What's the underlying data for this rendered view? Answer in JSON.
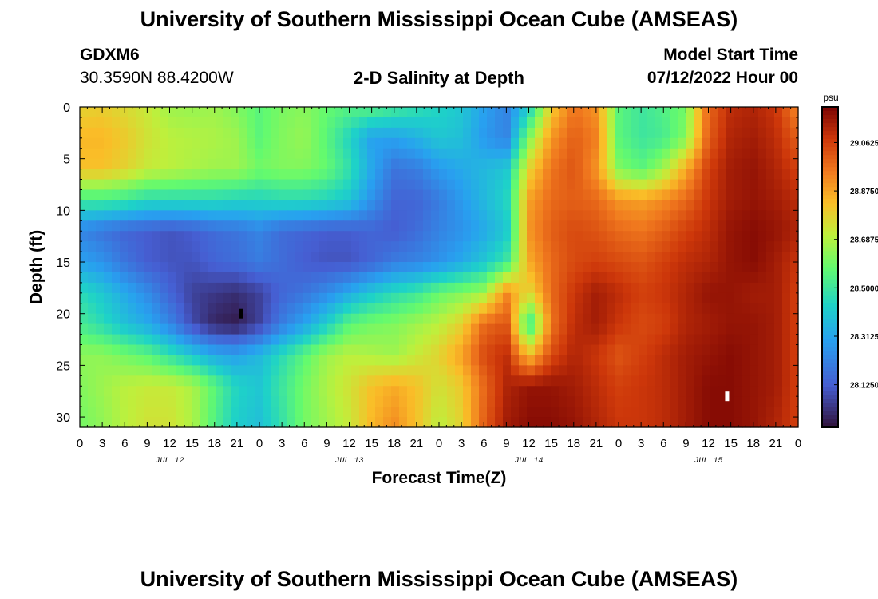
{
  "header": {
    "title": "University of Southern Mississippi Ocean Cube (AMSEAS)",
    "station": "GDXM6",
    "coords": "30.3590N  88.4200W",
    "plot_title": "2-D Salinity at Depth",
    "model_label": "Model Start Time",
    "model_time": "07/12/2022 Hour 00"
  },
  "footer": {
    "title": "University of Southern Mississippi Ocean Cube (AMSEAS)"
  },
  "chart_data": {
    "type": "heatmap",
    "title": "2-D Salinity at Depth",
    "xlabel": "Forecast Time(Z)",
    "ylabel": "Depth (ft)",
    "x_tick_labels": [
      "0",
      "3",
      "6",
      "9",
      "12",
      "15",
      "18",
      "21",
      "0",
      "3",
      "6",
      "9",
      "12",
      "15",
      "18",
      "21",
      "0",
      "3",
      "6",
      "9",
      "12",
      "15",
      "18",
      "21",
      "0",
      "3",
      "6",
      "9",
      "12",
      "15",
      "18",
      "21",
      "0"
    ],
    "x_hours": [
      0,
      3,
      6,
      9,
      12,
      15,
      18,
      21,
      24,
      27,
      30,
      33,
      36,
      39,
      42,
      45,
      48,
      51,
      54,
      57,
      60,
      63,
      66,
      69,
      72,
      75,
      78,
      81,
      84,
      87,
      90,
      93,
      96
    ],
    "day_labels": [
      {
        "label": "JUL 12",
        "hour": 12
      },
      {
        "label": "JUL 13",
        "hour": 36
      },
      {
        "label": "JUL 14",
        "hour": 60
      },
      {
        "label": "JUL 15",
        "hour": 84
      }
    ],
    "xlim": [
      0,
      96
    ],
    "y_ticks": [
      0,
      5,
      10,
      15,
      20,
      25,
      30
    ],
    "ylim": [
      0,
      31
    ],
    "colorbar": {
      "unit": "psu",
      "ticks": [
        "29.0625",
        "28.8750",
        "28.6875",
        "28.5000",
        "28.3125",
        "28.1250"
      ],
      "tick_values": [
        29.0625,
        28.875,
        28.6875,
        28.5,
        28.3125,
        28.125
      ],
      "range": [
        27.96,
        29.2
      ]
    },
    "grid_hours": [
      0,
      3,
      6,
      9,
      12,
      15,
      18,
      21,
      24,
      27,
      30,
      33,
      36,
      39,
      42,
      45,
      48,
      51,
      54,
      57,
      60,
      63,
      66,
      69,
      72,
      75,
      78,
      81,
      84,
      87,
      90,
      93,
      96
    ],
    "grid_depths_ft": [
      0,
      3,
      6,
      9,
      12,
      15,
      18,
      21,
      24,
      27,
      31
    ],
    "salinity": [
      [
        28.78,
        28.79,
        28.76,
        28.72,
        28.66,
        28.65,
        28.66,
        28.62,
        28.56,
        28.61,
        28.63,
        28.58,
        28.55,
        28.56,
        28.52,
        28.48,
        28.44,
        28.4,
        28.3,
        28.22,
        28.42,
        28.8,
        28.96,
        28.9,
        28.56,
        28.5,
        28.54,
        28.6,
        28.98,
        29.1,
        29.12,
        29.08,
        28.92
      ],
      [
        28.84,
        28.84,
        28.8,
        28.74,
        28.7,
        28.69,
        28.68,
        28.66,
        28.56,
        28.62,
        28.65,
        28.56,
        28.44,
        28.3,
        28.3,
        28.34,
        28.4,
        28.38,
        28.28,
        28.22,
        28.62,
        28.9,
        29.0,
        28.94,
        28.56,
        28.5,
        28.52,
        28.62,
        29.0,
        29.12,
        29.14,
        29.1,
        29.0
      ],
      [
        28.82,
        28.82,
        28.78,
        28.72,
        28.7,
        28.68,
        28.66,
        28.66,
        28.6,
        28.62,
        28.62,
        28.58,
        28.48,
        28.32,
        28.18,
        28.2,
        28.28,
        28.32,
        28.36,
        28.4,
        28.78,
        28.96,
        29.02,
        28.9,
        28.62,
        28.56,
        28.66,
        28.86,
        29.06,
        29.14,
        29.16,
        29.12,
        29.06
      ],
      [
        28.52,
        28.52,
        28.5,
        28.46,
        28.46,
        28.46,
        28.46,
        28.44,
        28.44,
        28.46,
        28.46,
        28.44,
        28.4,
        28.26,
        28.14,
        28.14,
        28.2,
        28.28,
        28.36,
        28.44,
        28.88,
        28.98,
        29.0,
        28.98,
        28.9,
        28.88,
        28.92,
        28.98,
        29.08,
        29.14,
        29.16,
        29.14,
        29.1
      ],
      [
        28.22,
        28.18,
        28.14,
        28.12,
        28.1,
        28.12,
        28.16,
        28.18,
        28.22,
        28.16,
        28.14,
        28.12,
        28.12,
        28.14,
        28.12,
        28.16,
        28.22,
        28.26,
        28.32,
        28.4,
        28.9,
        29.0,
        29.04,
        29.02,
        28.98,
        28.96,
        29.0,
        29.06,
        29.1,
        29.16,
        29.18,
        29.16,
        29.12
      ],
      [
        28.3,
        28.26,
        28.18,
        28.12,
        28.1,
        28.1,
        28.14,
        28.16,
        28.2,
        28.16,
        28.12,
        28.1,
        28.1,
        28.14,
        28.2,
        28.22,
        28.26,
        28.32,
        28.4,
        28.5,
        28.86,
        28.98,
        29.04,
        29.06,
        29.04,
        29.02,
        29.06,
        29.1,
        29.12,
        29.16,
        29.18,
        29.14,
        29.08
      ],
      [
        28.46,
        28.4,
        28.32,
        28.24,
        28.14,
        28.06,
        28.04,
        28.02,
        28.06,
        28.14,
        28.18,
        28.24,
        28.32,
        28.4,
        28.46,
        28.5,
        28.58,
        28.62,
        28.66,
        28.92,
        28.76,
        28.98,
        29.08,
        29.14,
        29.1,
        29.06,
        29.08,
        29.12,
        29.16,
        29.16,
        29.14,
        29.14,
        29.06
      ],
      [
        28.52,
        28.46,
        28.38,
        28.32,
        28.22,
        28.08,
        28.0,
        27.98,
        28.06,
        28.2,
        28.3,
        28.42,
        28.56,
        28.6,
        28.62,
        28.66,
        28.7,
        28.78,
        28.98,
        29.02,
        28.48,
        28.96,
        29.1,
        29.14,
        29.08,
        29.04,
        29.06,
        29.12,
        29.14,
        29.16,
        29.16,
        29.14,
        29.06
      ],
      [
        28.64,
        28.64,
        28.6,
        28.56,
        28.48,
        28.4,
        28.32,
        28.3,
        28.36,
        28.46,
        28.56,
        28.66,
        28.7,
        28.68,
        28.66,
        28.72,
        28.78,
        28.88,
        29.04,
        29.1,
        28.82,
        29.04,
        29.12,
        29.08,
        29.02,
        29.06,
        29.1,
        29.14,
        29.16,
        29.18,
        29.16,
        29.14,
        29.06
      ],
      [
        28.62,
        28.66,
        28.7,
        28.72,
        28.72,
        28.68,
        28.56,
        28.44,
        28.4,
        28.5,
        28.6,
        28.68,
        28.74,
        28.82,
        28.86,
        28.82,
        28.74,
        28.8,
        28.98,
        29.12,
        29.16,
        29.16,
        29.14,
        29.1,
        29.06,
        29.08,
        29.1,
        29.14,
        29.18,
        29.18,
        29.16,
        29.14,
        29.06
      ],
      [
        28.6,
        28.64,
        28.7,
        28.74,
        28.74,
        28.68,
        28.54,
        28.42,
        28.38,
        28.48,
        28.6,
        28.66,
        28.72,
        28.84,
        28.92,
        28.82,
        28.7,
        28.78,
        29.0,
        29.14,
        29.18,
        29.18,
        29.16,
        29.12,
        29.08,
        29.08,
        29.1,
        29.14,
        29.18,
        29.18,
        29.16,
        29.12,
        29.06
      ]
    ],
    "markers": [
      {
        "hour": 21.5,
        "depth_ft": 20,
        "color": "#000000"
      },
      {
        "hour": 86.5,
        "depth_ft": 28,
        "color": "#ffffff"
      }
    ]
  }
}
